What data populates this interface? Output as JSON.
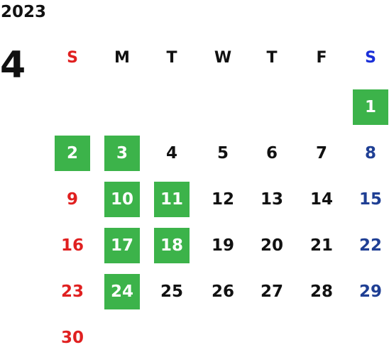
{
  "calendar": {
    "year": "2023",
    "month": "4",
    "weekdays": [
      {
        "label": "S",
        "color": "#e02020"
      },
      {
        "label": "M",
        "color": "#111111"
      },
      {
        "label": "T",
        "color": "#111111"
      },
      {
        "label": "W",
        "color": "#111111"
      },
      {
        "label": "T",
        "color": "#111111"
      },
      {
        "label": "F",
        "color": "#111111"
      },
      {
        "label": "S",
        "color": "#1a2fd8"
      }
    ],
    "weeks": [
      [
        null,
        null,
        null,
        null,
        null,
        null,
        "1"
      ],
      [
        "2",
        "3",
        "4",
        "5",
        "6",
        "7",
        "8"
      ],
      [
        "9",
        "10",
        "11",
        "12",
        "13",
        "14",
        "15"
      ],
      [
        "16",
        "17",
        "18",
        "19",
        "20",
        "21",
        "22"
      ],
      [
        "23",
        "24",
        "25",
        "26",
        "27",
        "28",
        "29"
      ],
      [
        "30",
        null,
        null,
        null,
        null,
        null,
        null
      ]
    ],
    "highlighted_days": [
      "1",
      "2",
      "3",
      "10",
      "11",
      "17",
      "18",
      "24"
    ],
    "colors": {
      "highlight_bg": "#3cb34a",
      "highlight_text": "#ffffff",
      "sunday": "#e02020",
      "saturday": "#1f3f94",
      "weekday": "#111111"
    }
  }
}
